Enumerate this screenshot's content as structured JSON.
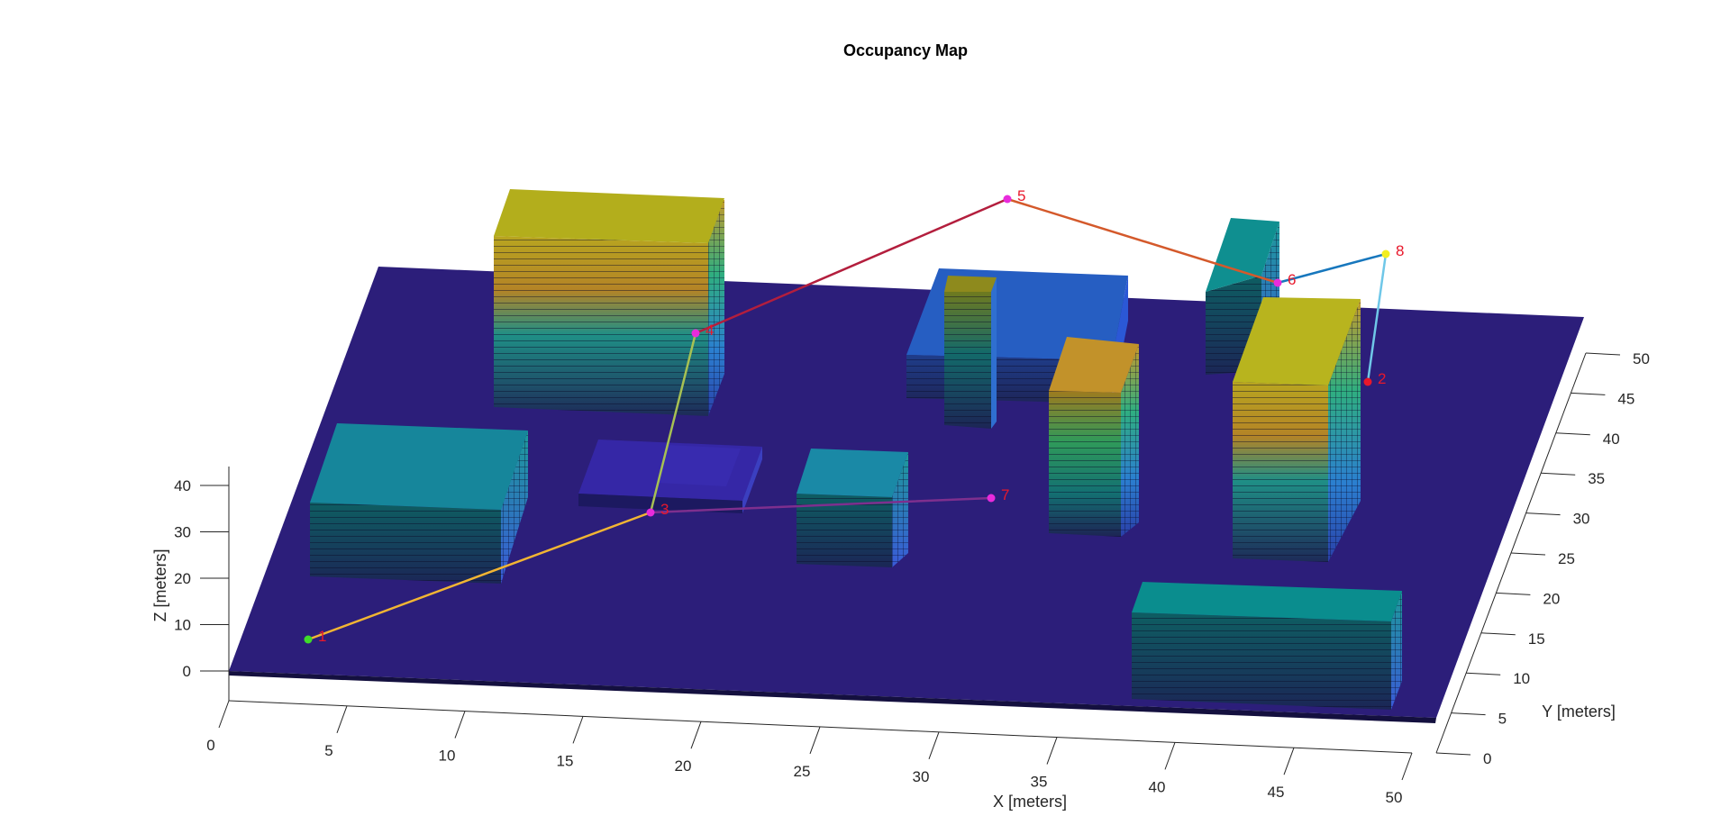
{
  "chart_data": {
    "type": "3d-occupancy-map",
    "title": "Occupancy Map",
    "xlabel": "X [meters]",
    "ylabel": "Y [meters]",
    "zlabel": "Z [meters]",
    "xlim": [
      0,
      50
    ],
    "ylim": [
      0,
      50
    ],
    "zlim": [
      0,
      45
    ],
    "x_ticks": [
      "0",
      "5",
      "10",
      "15",
      "20",
      "25",
      "30",
      "35",
      "40",
      "45",
      "50"
    ],
    "y_ticks": [
      "0",
      "5",
      "10",
      "15",
      "20",
      "25",
      "30",
      "35",
      "40",
      "45",
      "50"
    ],
    "z_ticks": [
      "0",
      "10",
      "20",
      "30",
      "40"
    ],
    "ground_color": "#2c1e7a",
    "waypoints": [
      {
        "label": "1",
        "color": "#3fdc2a"
      },
      {
        "label": "2",
        "color": "#e8182b"
      },
      {
        "label": "3",
        "color": "#e82bdc"
      },
      {
        "label": "4",
        "color": "#e82bdc"
      },
      {
        "label": "5",
        "color": "#e82bdc"
      },
      {
        "label": "6",
        "color": "#e82bdc"
      },
      {
        "label": "7",
        "color": "#e82bdc"
      },
      {
        "label": "8",
        "color": "#f2ee20"
      }
    ],
    "path_segments": [
      {
        "from": "1",
        "to": "3",
        "color": "#f2b533"
      },
      {
        "from": "3",
        "to": "4",
        "color": "#a7c153"
      },
      {
        "from": "4",
        "to": "5",
        "color": "#b31e3d"
      },
      {
        "from": "5",
        "to": "6",
        "color": "#d4592b"
      },
      {
        "from": "6",
        "to": "8",
        "color": "#1777bd"
      },
      {
        "from": "8",
        "to": "2",
        "color": "#6fc7e8"
      },
      {
        "from": "3",
        "to": "7",
        "color": "#7e2f8e"
      }
    ],
    "grid": false
  }
}
